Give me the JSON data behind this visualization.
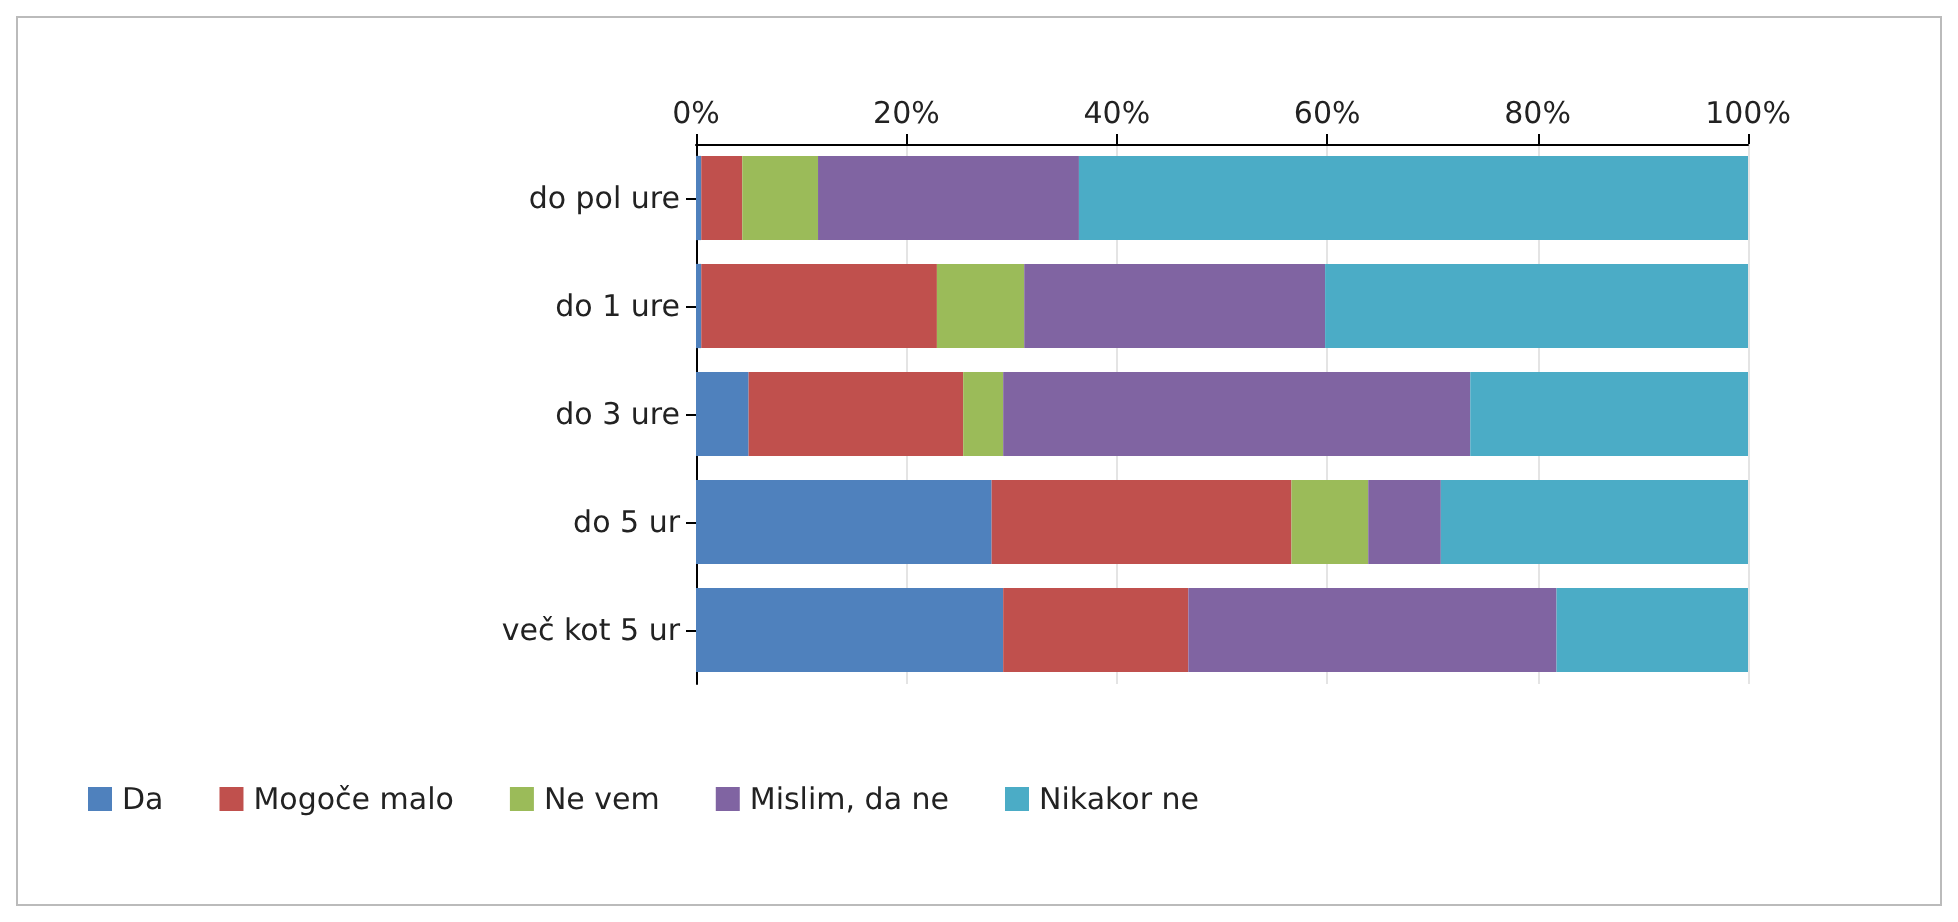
{
  "chart_data": {
    "type": "bar",
    "orientation": "horizontal",
    "stacked": true,
    "categories": [
      "do pol ure",
      "do 1 ure",
      "do 3 ure",
      "do 5 ur",
      "več kot 5 ur"
    ],
    "series": [
      {
        "name": "Da",
        "color": "#4f81bd",
        "values": [
          0.5,
          0.5,
          5.0,
          28.1,
          29.2
        ]
      },
      {
        "name": "Mogoče malo",
        "color": "#c0504d",
        "values": [
          3.9,
          22.4,
          20.4,
          28.5,
          17.6
        ]
      },
      {
        "name": "Ne vem",
        "color": "#9bbb59",
        "values": [
          7.2,
          8.3,
          3.8,
          7.3,
          0
        ]
      },
      {
        "name": "Mislim, da ne",
        "color": "#8064a2",
        "values": [
          24.8,
          28.6,
          44.4,
          6.9,
          35.0
        ]
      },
      {
        "name": "Nikakor ne",
        "color": "#4bacc6",
        "values": [
          63.6,
          40.2,
          26.4,
          29.2,
          18.2
        ]
      }
    ],
    "xlim": [
      0,
      100
    ],
    "xticks": [
      {
        "value": 0,
        "label": "0%"
      },
      {
        "value": 20,
        "label": "20%"
      },
      {
        "value": 40,
        "label": "40%"
      },
      {
        "value": 60,
        "label": "60%"
      },
      {
        "value": 80,
        "label": "80%"
      },
      {
        "value": 100,
        "label": "100%"
      }
    ],
    "grid": "x",
    "legend": "bottom"
  }
}
